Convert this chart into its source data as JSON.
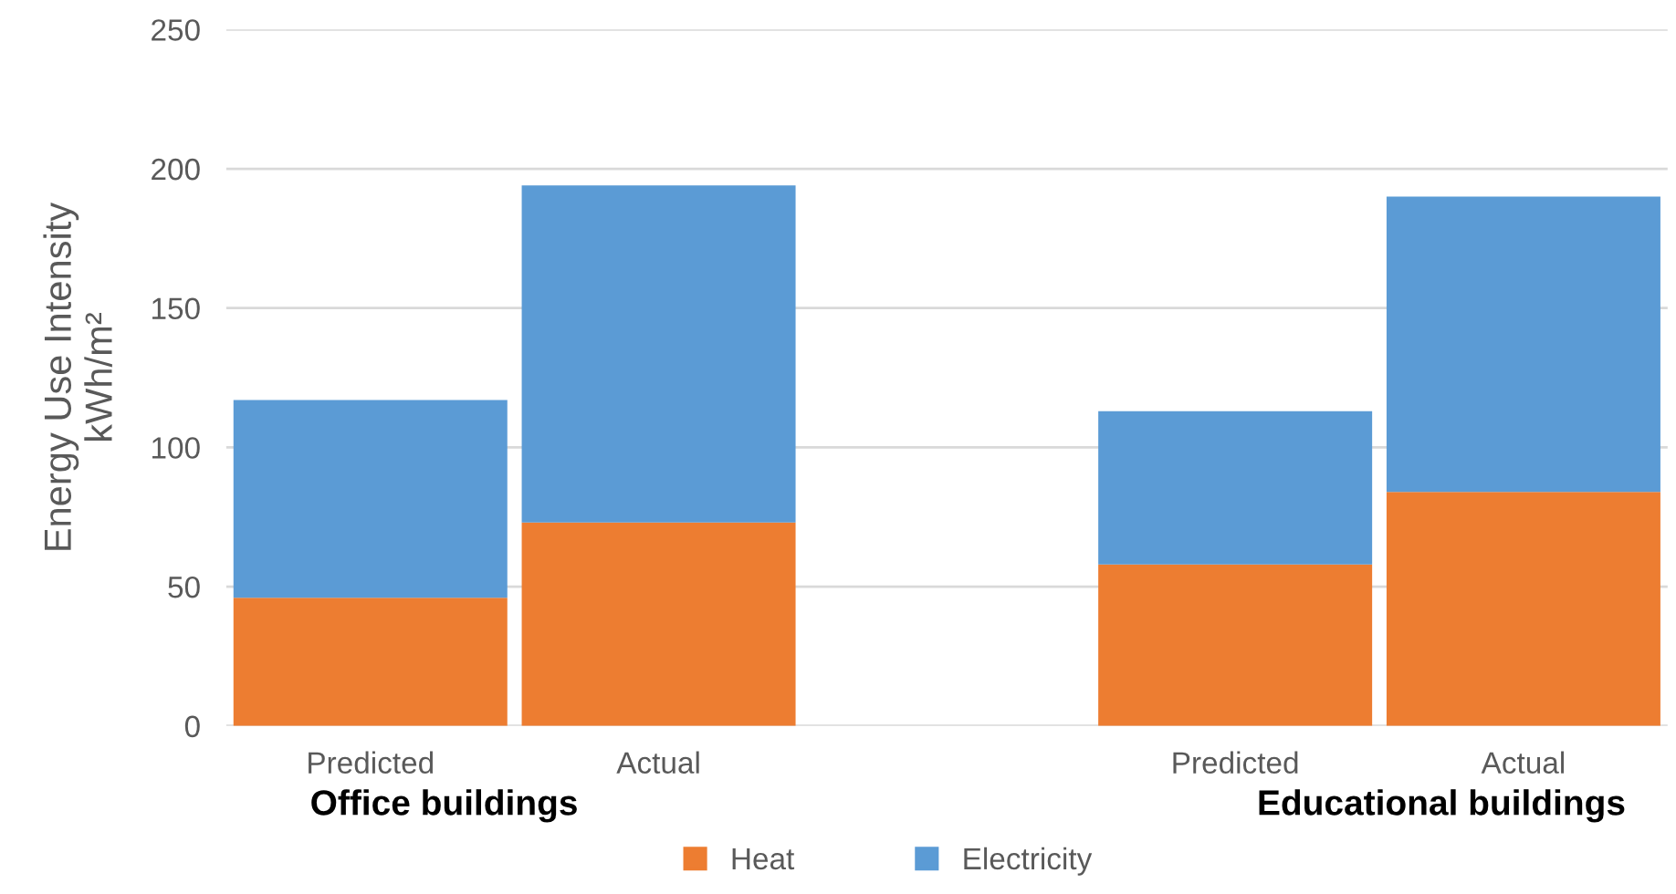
{
  "chart_data": {
    "type": "bar",
    "stacked": true,
    "ylabel": "Energy Use Intensity\nkWh/m²",
    "categories": [
      "Predicted",
      "Actual",
      null,
      "Predicted",
      "Actual"
    ],
    "series": [
      {
        "name": "Heat",
        "color": "#ed7d31",
        "values": [
          46,
          73,
          null,
          58,
          84
        ]
      },
      {
        "name": "Electricity",
        "color": "#5b9bd5",
        "values": [
          71,
          121,
          null,
          55,
          106
        ]
      }
    ],
    "ylim": [
      0,
      250
    ],
    "yticks": [
      0,
      50,
      100,
      150,
      200,
      250
    ],
    "grid": "y",
    "legend": "bottom",
    "annotations": [
      "Office buildings",
      "Educational buildings"
    ]
  }
}
